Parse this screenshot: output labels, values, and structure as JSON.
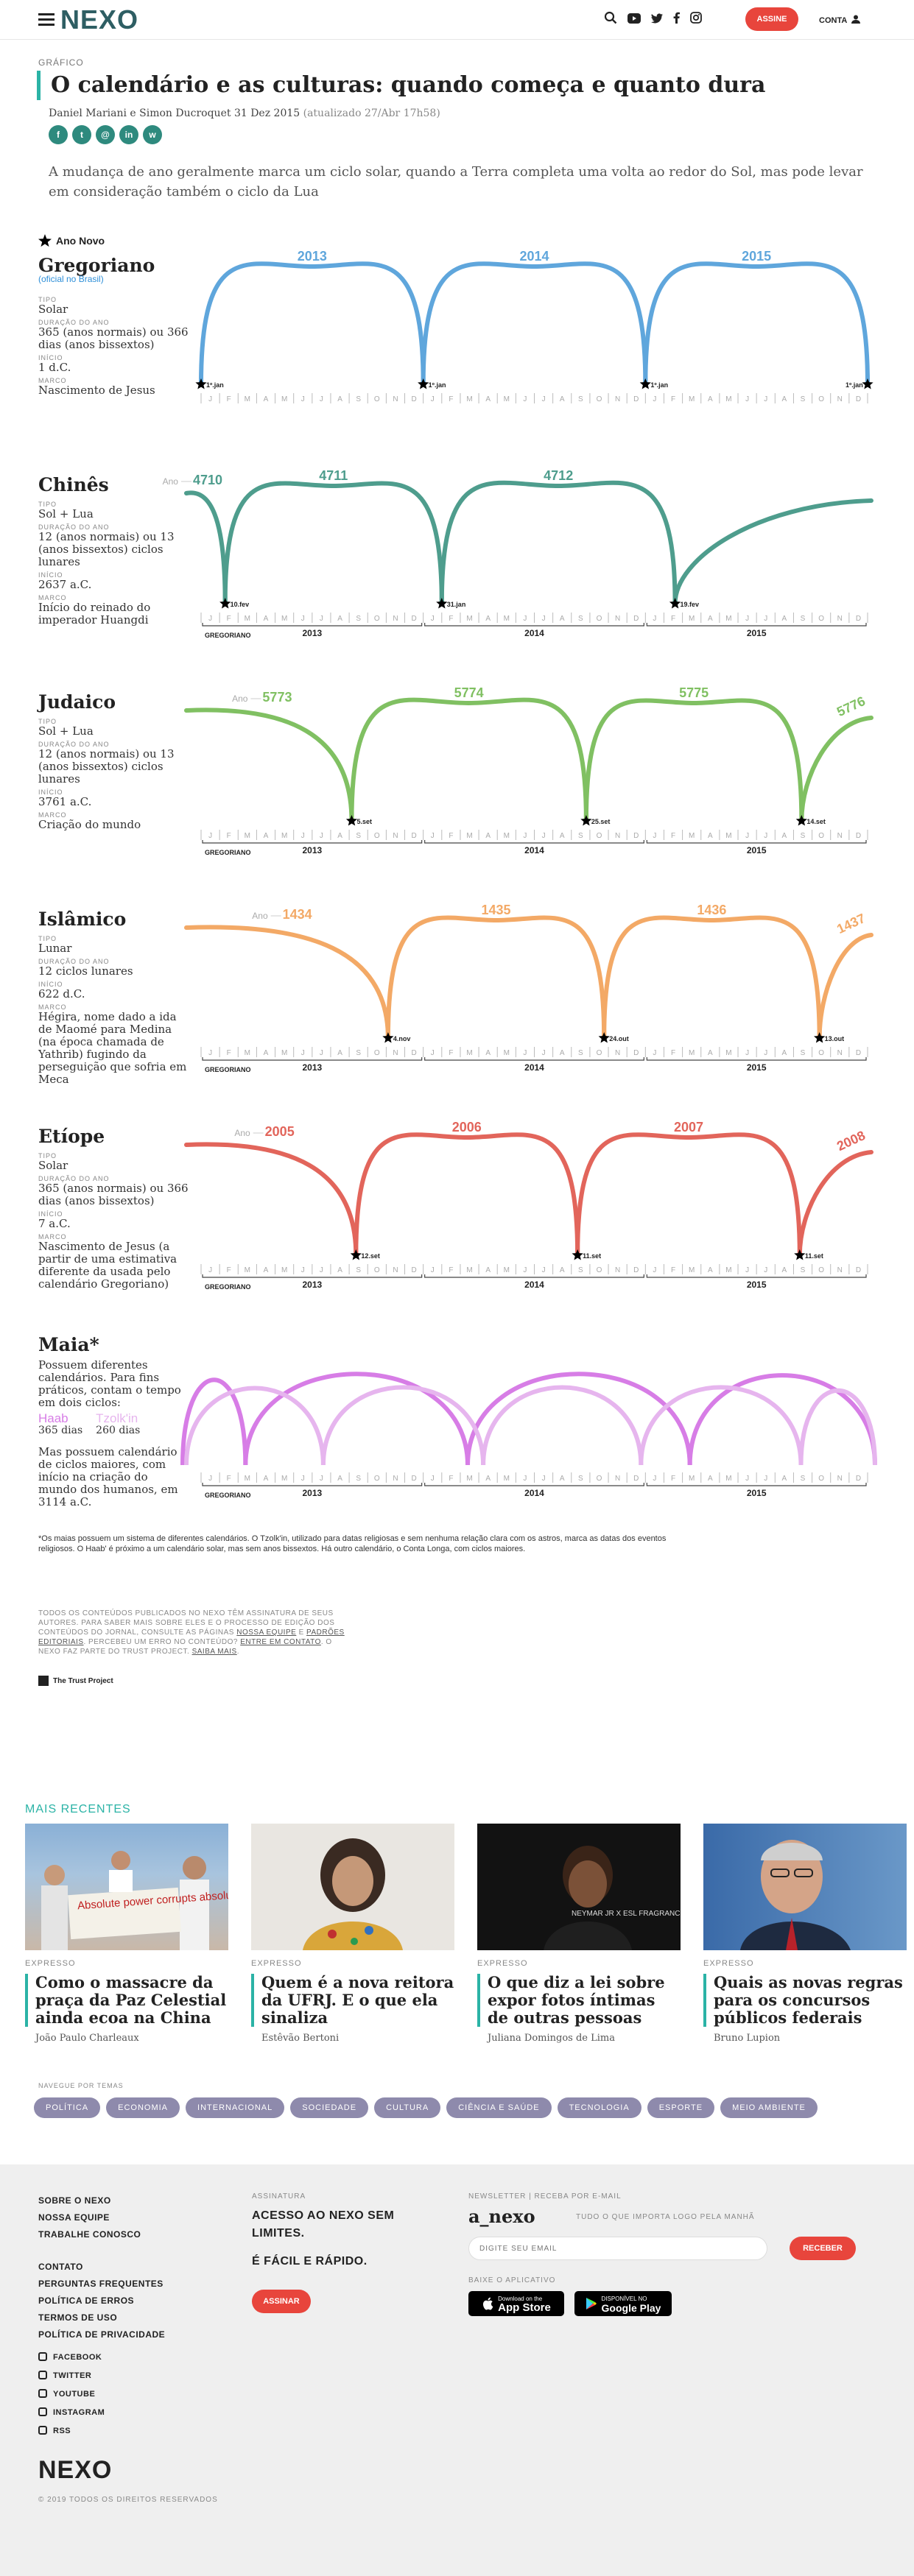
{
  "header": {
    "logo": "NEXO",
    "assine": "ASSINE",
    "conta": "CONTA"
  },
  "article": {
    "kicker": "GRÁFICO",
    "title": "O calendário e as culturas: quando começa e quanto dura",
    "byline": "Daniel Mariani e Simon Ducroquet  31 Dez 2015",
    "updated": "(atualizado 27/Abr 17h58)",
    "lead": "A mudança de ano geralmente marca um ciclo solar, quando a Terra completa uma volta ao redor do Sol, mas pode levar em consideração também o ciclo da Lua"
  },
  "legend": "Ano Novo",
  "months": [
    "J",
    "F",
    "M",
    "A",
    "M",
    "J",
    "J",
    "A",
    "S",
    "O",
    "N",
    "D"
  ],
  "greg_label": "GREGORIANO",
  "greg_years": [
    "2013",
    "2014",
    "2015"
  ],
  "ano_prefix": "Ano",
  "labels": {
    "tipo": "TIPO",
    "duracao": "DURAÇÃO DO ANO",
    "inicio": "INÍCIO",
    "marco": "MARCO"
  },
  "calendars": [
    {
      "name": "Gregoriano",
      "official": "(oficial no Brasil)",
      "color": "#5fa6dc",
      "tipo": "Solar",
      "duracao": "365 (anos normais) ou 366 dias (anos bissextos)",
      "inicio": "1 d.C.",
      "marco": "Nascimento de Jesus",
      "years": [
        "2013",
        "2014",
        "2015"
      ],
      "events": [
        "1º.jan",
        "1º.jan",
        "1º.jan",
        "1º.jan"
      ]
    },
    {
      "name": "Chinês",
      "color": "#4e9d8d",
      "tipo": "Sol + Lua",
      "duracao": "12 (anos normais) ou 13 (anos bissextos) ciclos lunares",
      "inicio": "2637 a.C.",
      "marco": "Início do reinado do imperador Huangdi",
      "years": [
        "4710",
        "4711",
        "4712"
      ],
      "events": [
        "10.fev",
        "31.jan",
        "19.fev"
      ]
    },
    {
      "name": "Judaico",
      "color": "#80c062",
      "tipo": "Sol + Lua",
      "duracao": "12 (anos normais) ou 13 (anos bissextos) ciclos lunares",
      "inicio": "3761 a.C.",
      "marco": "Criação do mundo",
      "years": [
        "5773",
        "5774",
        "5775",
        "5776"
      ],
      "events": [
        "5.set",
        "25.set",
        "14.set"
      ]
    },
    {
      "name": "Islâmico",
      "color": "#f3a966",
      "tipo": "Lunar",
      "duracao": "12 ciclos lunares",
      "inicio": "622 d.C.",
      "marco": "Hégira, nome dado a ida de Maomé para Medina (na época chamada de Yathrib) fugindo da perseguição que sofria em Meca",
      "years": [
        "1434",
        "1435",
        "1436",
        "1437"
      ],
      "events": [
        "4.nov",
        "24.out",
        "13.out"
      ]
    },
    {
      "name": "Etíope",
      "color": "#e2655b",
      "tipo": "Solar",
      "duracao": "365 (anos normais) ou 366 dias (anos bissextos)",
      "inicio": "7 a.C.",
      "marco": "Nascimento de Jesus (a partir de uma estimativa diferente da usada pelo calendário Gregoriano)",
      "years": [
        "2005",
        "2006",
        "2007",
        "2008"
      ],
      "events": [
        "12.set",
        "11.set",
        "11.set"
      ]
    }
  ],
  "maia": {
    "name": "Maia*",
    "text1": "Possuem diferentes calendários. Para fins práticos, contam o tempo em dois ciclos:",
    "haab": "Haab",
    "haab_days": "365 dias",
    "tzolkin": "Tzolk'in",
    "tzolkin_days": "260 dias",
    "text2": "Mas possuem calendário de ciclos maiores, com início na criação do mundo dos humanos, em 3114 a.C.",
    "haab_color": "#d77de6",
    "tzolkin_color": "#e6b5ee"
  },
  "footnote": "*Os maias possuem um sistema de diferentes calendários. O Tzolk'in, utilizado para datas religiosas e sem nenhuma relação clara com os astros, marca as datas dos eventos religiosos. O Haab' é próximo a um calendário solar, mas sem anos bissextos. Há outro calendário, o Conta Longa, com ciclos maiores.",
  "policy": {
    "p1": "Todos os conteúdos publicados no Nexo têm assinatura de seus autores. Para saber mais sobre eles e o processo de edição dos conteúdos do jornal, consulte as páginas",
    "l1": "Nossa equipe",
    "and": "e",
    "l2": "Padrões editoriais",
    "p2": ". Percebeu um erro no conteúdo?",
    "l3": "Entre em contato",
    "p3": ". O Nexo faz parte do Trust Project.",
    "l4": "Saiba mais",
    "end": "."
  },
  "trust": "The Trust Project",
  "recent": {
    "heading": "MAIS RECENTES",
    "cards": [
      {
        "tag": "EXPRESSO",
        "title": "Como o massacre da praça da Paz Celestial ainda ecoa na China",
        "author": "João Paulo Charleaux",
        "sign": "Absolute power corrupts absolutely"
      },
      {
        "tag": "EXPRESSO",
        "title": "Quem é a nova reitora da UFRJ. E o que ela sinaliza",
        "author": "Estêvão Bertoni"
      },
      {
        "tag": "EXPRESSO",
        "title": "O que diz a lei sobre expor fotos íntimas de outras pessoas",
        "author": "Juliana Domingos de Lima",
        "banner": "NEYMAR JR\nX\nESL FRAGRANCES"
      },
      {
        "tag": "EXPRESSO",
        "title": "Quais as novas regras para os concursos públicos federais",
        "author": "Bruno Lupion"
      }
    ]
  },
  "nav": {
    "heading": "NAVEGUE POR TEMAS",
    "items": [
      "POLÍTICA",
      "ECONOMIA",
      "INTERNACIONAL",
      "SOCIEDADE",
      "CULTURA",
      "CIÊNCIA E SAÚDE",
      "TECNOLOGIA",
      "ESPORTE",
      "MEIO AMBIENTE"
    ]
  },
  "footer": {
    "col1a": [
      "SOBRE O NEXO",
      "NOSSA EQUIPE",
      "TRABALHE CONOSCO"
    ],
    "col1b": [
      "CONTATO",
      "PERGUNTAS FREQUENTES",
      "POLÍTICA DE ERROS",
      "TERMOS DE USO",
      "POLÍTICA DE PRIVACIDADE"
    ],
    "social": [
      "FACEBOOK",
      "TWITTER",
      "YOUTUBE",
      "INSTAGRAM",
      "RSS"
    ],
    "assinatura_h": "ASSINATURA",
    "assinatura1": "ACESSO AO NEXO SEM LIMITES.",
    "assinatura2": "É FÁCIL E RÁPIDO.",
    "assinar": "ASSINAR",
    "news_h": "NEWSLETTER | RECEBA POR E-MAIL",
    "anexo": "a_nexo",
    "anexo_sub": "TUDO O QUE IMPORTA LOGO PELA MANHÃ",
    "email_ph": "DIGITE SEU EMAIL",
    "receber": "RECEBER",
    "app_h": "BAIXE O APLICATIVO",
    "appstore_small": "Download on the",
    "appstore": "App Store",
    "gplay_small": "DISPONÍVEL NO",
    "gplay": "Google Play",
    "logo": "NEXO",
    "copy": "© 2019 TODOS OS DIREITOS RESERVADOS"
  }
}
